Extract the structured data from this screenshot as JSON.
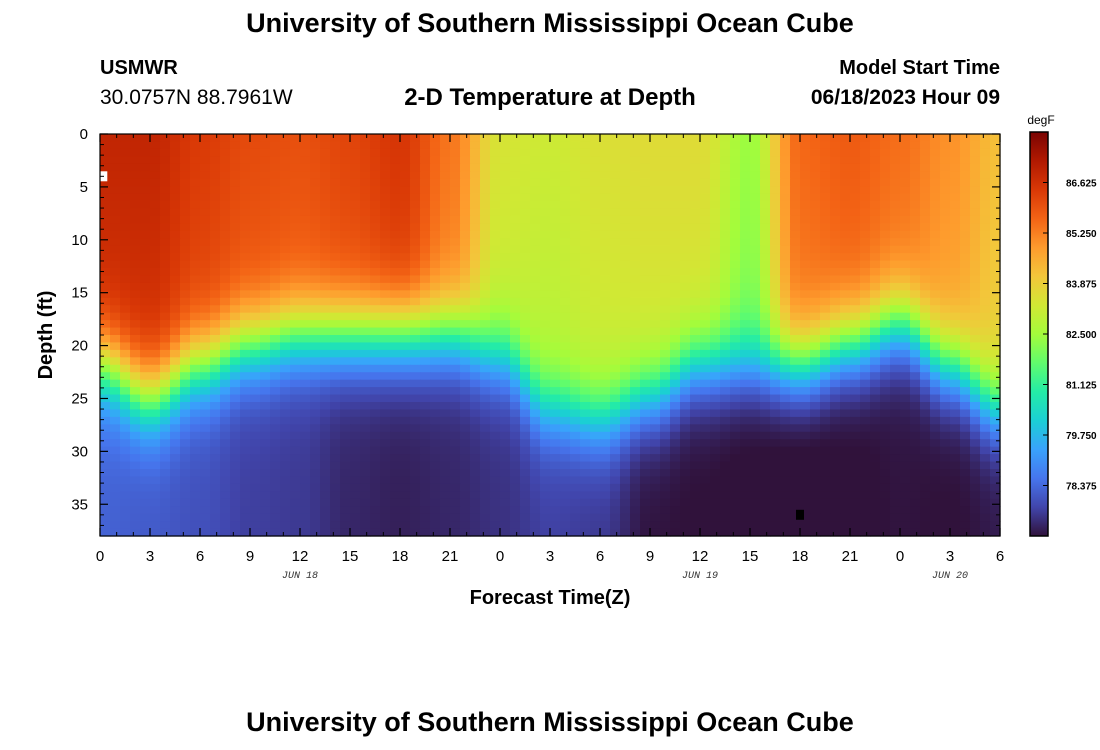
{
  "header": {
    "title": "University of Southern Mississippi Ocean Cube",
    "station_name": "USMWR",
    "station_coords": "30.0757N  88.7961W",
    "chart_title": "2-D Temperature at Depth",
    "model_start_label": "Model Start Time",
    "model_start_value": "06/18/2023 Hour 09"
  },
  "footer": {
    "title": "University of Southern Mississippi Ocean Cube"
  },
  "chart_data": {
    "type": "heatmap",
    "title": "2-D Temperature at Depth",
    "xlabel": "Forecast Time(Z)",
    "ylabel": "Depth (ft)",
    "xlim": [
      0,
      54
    ],
    "ylim": [
      38,
      0
    ],
    "x_tick_values": [
      0,
      3,
      6,
      9,
      12,
      15,
      18,
      21,
      24,
      27,
      30,
      33,
      36,
      39,
      42,
      45,
      48,
      51,
      54
    ],
    "x_tick_labels": [
      "0",
      "3",
      "6",
      "9",
      "12",
      "15",
      "18",
      "21",
      "0",
      "3",
      "6",
      "9",
      "12",
      "15",
      "18",
      "21",
      "0",
      "3",
      "6"
    ],
    "y_ticks": [
      0,
      5,
      10,
      15,
      20,
      25,
      30,
      35
    ],
    "date_labels": [
      {
        "label": "JUN 18",
        "x": 12
      },
      {
        "label": "JUN 19",
        "x": 36
      },
      {
        "label": "JUN 20",
        "x": 51
      }
    ],
    "colorbar": {
      "unit": "degF",
      "min": 77.0,
      "max": 88.0,
      "ticks": [
        "86.625",
        "85.250",
        "83.875",
        "82.500",
        "81.125",
        "79.750",
        "78.375"
      ],
      "colors": [
        "#30123b",
        "#4145ab",
        "#4675ed",
        "#39a2fc",
        "#1bcfd4",
        "#24eca6",
        "#61fc6c",
        "#a4fc3b",
        "#d1e834",
        "#f3c63a",
        "#fe9b2d",
        "#f36315",
        "#d93806",
        "#b11901",
        "#7a0402"
      ]
    },
    "surface_temp": {
      "times": [
        0,
        3,
        6,
        9,
        12,
        15,
        18,
        21,
        24,
        27,
        30,
        33,
        36,
        39,
        42,
        45,
        48,
        51,
        54
      ],
      "values_degF": [
        86.9,
        86.9,
        86.4,
        86.1,
        86.0,
        86.2,
        86.5,
        85.4,
        83.4,
        83.2,
        83.5,
        83.6,
        83.6,
        82.4,
        85.6,
        85.8,
        85.5,
        85.0,
        84.2
      ]
    },
    "bottom_temp_degF": [
      78.6,
      78.5,
      78.3,
      78.0,
      77.9,
      77.6,
      77.5,
      77.6,
      77.8,
      78.1,
      78.0,
      77.4,
      77.3,
      77.2,
      77.1,
      77.2,
      77.3,
      77.3,
      77.5
    ],
    "thermocline_depth_ft": {
      "times": [
        0,
        3,
        6,
        9,
        12,
        15,
        18,
        21,
        24,
        27,
        30,
        33,
        36,
        39,
        42,
        45,
        48,
        51,
        54
      ],
      "values": [
        22,
        25,
        22,
        20,
        19,
        19,
        19,
        19,
        21,
        26,
        27,
        25,
        22,
        22,
        22,
        20,
        18,
        22,
        26
      ]
    },
    "thermocline_width_ft": 7,
    "markers": [
      {
        "name": "white-marker",
        "x": 0.2,
        "depth": 4,
        "color": "#ffffff"
      },
      {
        "name": "black-marker",
        "x": 42,
        "depth": 36,
        "color": "#000000"
      }
    ]
  }
}
